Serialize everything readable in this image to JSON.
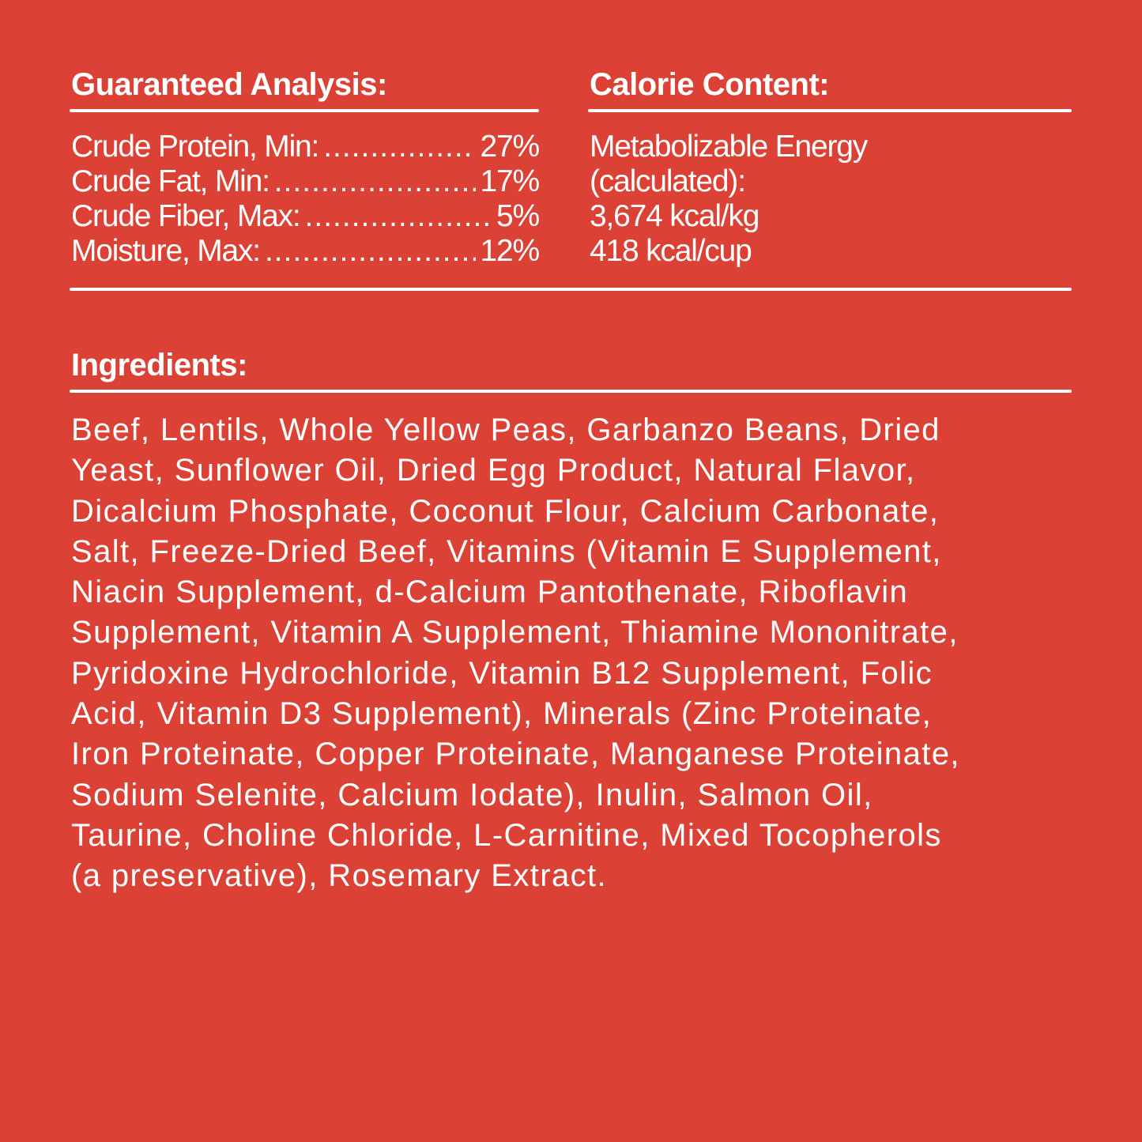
{
  "background_color": "#DB4135",
  "text_color": "#FFFFFF",
  "guaranteed_analysis": {
    "title": "Guaranteed Analysis:",
    "rows": [
      {
        "label": "Crude Protein, Min:",
        "value": "27%"
      },
      {
        "label": "Crude Fat, Min:",
        "value": "17%"
      },
      {
        "label": "Crude Fiber, Max:",
        "value": "5%"
      },
      {
        "label": "Moisture, Max:",
        "value": "12%"
      }
    ]
  },
  "calorie_content": {
    "title": "Calorie Content:",
    "lines": [
      "Metabolizable Energy",
      "(calculated):",
      "3,674 kcal/kg",
      "418 kcal/cup"
    ]
  },
  "ingredients": {
    "title": "Ingredients:",
    "lines": [
      "Beef, Lentils, Whole Yellow Peas, Garbanzo Beans, Dried",
      "Yeast, Sunflower Oil, Dried Egg Product, Natural Flavor,",
      "Dicalcium Phosphate, Coconut Flour, Calcium Carbonate,",
      "Salt, Freeze-Dried Beef, Vitamins (Vitamin E Supplement,",
      "Niacin Supplement, d-Calcium Pantothenate, Riboflavin",
      "Supplement, Vitamin A Supplement, Thiamine Mononitrate,",
      "Pyridoxine Hydrochloride, Vitamin B12 Supplement, Folic",
      "Acid, Vitamin D3 Supplement), Minerals (Zinc Proteinate,",
      "Iron Proteinate, Copper Proteinate, Manganese Proteinate,",
      "Sodium Selenite, Calcium Iodate), Inulin, Salmon Oil,",
      "Taurine, Choline Chloride, L-Carnitine, Mixed Tocopherols",
      "(a preservative), Rosemary Extract."
    ]
  }
}
